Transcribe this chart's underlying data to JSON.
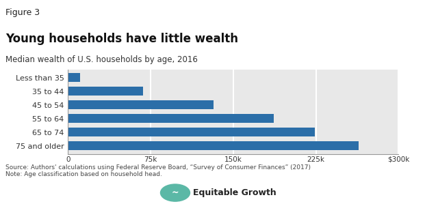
{
  "figure_label": "Figure 3",
  "title": "Young households have little wealth",
  "subtitle": "Median wealth of U.S. households by age, 2016",
  "categories": [
    "Less than 35",
    "35 to 44",
    "45 to 54",
    "55 to 64",
    "65 to 74",
    "75 and older"
  ],
  "values": [
    11000,
    68000,
    132000,
    187000,
    224000,
    264000
  ],
  "bar_color": "#2B6EA8",
  "top_strip_color": "#FFFFFF",
  "background_color": "#E8E8E8",
  "xlim": [
    0,
    300000
  ],
  "xticks": [
    0,
    75000,
    150000,
    225000,
    300000
  ],
  "xticklabels": [
    "0",
    "75k",
    "150k",
    "225k",
    "$300k"
  ],
  "source_text": "Source: Authors' calculations using Federal Reserve Board, “Survey of Consumer Finances” (2017)\nNote: Age classification based on household head.",
  "title_fontsize": 12,
  "subtitle_fontsize": 8.5,
  "figure_label_fontsize": 9,
  "tick_fontsize": 7.5,
  "ytick_fontsize": 8,
  "source_fontsize": 6.5,
  "bar_height": 0.65,
  "logo_color": "#5BB8A6",
  "logo_text": "Equitable Growth"
}
